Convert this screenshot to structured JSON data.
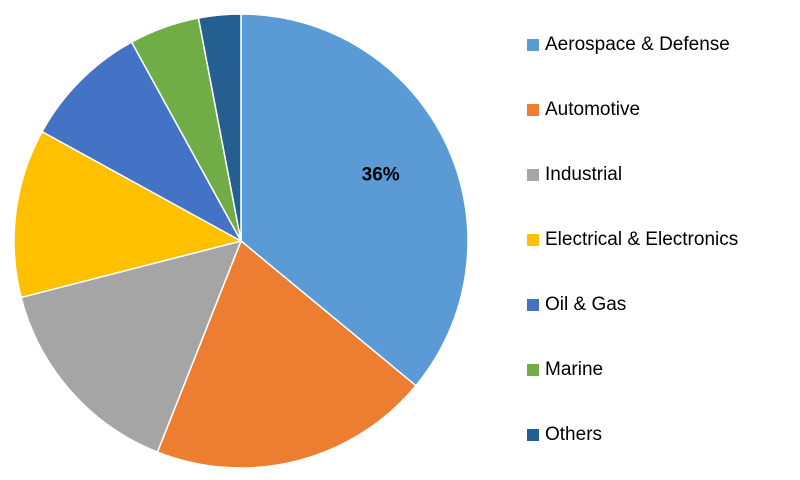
{
  "chart_data": {
    "type": "pie",
    "categories": [
      "Aerospace & Defense",
      "Automotive",
      "Industrial",
      "Electrical & Electronics",
      "Oil & Gas",
      "Marine",
      "Others"
    ],
    "values": [
      36,
      20,
      15,
      12,
      9,
      5,
      3
    ],
    "value_labels": [
      "36%",
      null,
      null,
      null,
      null,
      null,
      null
    ],
    "colors": [
      "#5b9bd5",
      "#ed7d31",
      "#a5a5a5",
      "#ffc000",
      "#4472c4",
      "#70ad47",
      "#255e91"
    ],
    "legend": "right"
  }
}
